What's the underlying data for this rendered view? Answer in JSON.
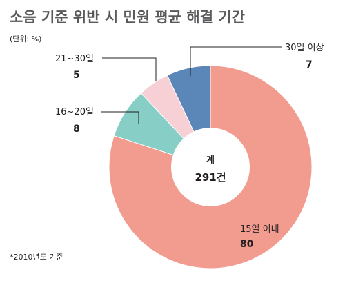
{
  "chart_data": {
    "type": "pie",
    "title": "소음 기준 위반 시 민원 평균 해결 기간",
    "unit_note": "(단위: %)",
    "center_label": "계",
    "center_value": "291건",
    "footnote": "*2010년도 기준",
    "slices": [
      {
        "label": "15일 이내",
        "value": 80,
        "color": "#f29b8f"
      },
      {
        "label": "16~20일",
        "value": 8,
        "color": "#86cec6"
      },
      {
        "label": "21~30일",
        "value": 5,
        "color": "#f7d0d6"
      },
      {
        "label": "30일 이상",
        "value": 7,
        "color": "#5b86b8"
      }
    ]
  }
}
